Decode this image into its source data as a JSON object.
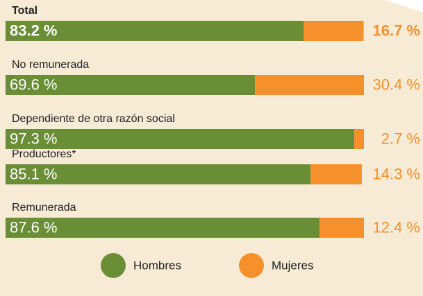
{
  "chart_data": {
    "type": "stacked_bar_horizontal",
    "categories": [
      "Total",
      "No remunerada",
      "Dependiente de otra razón social",
      "Productores*",
      "Remunerada"
    ],
    "xlim": [
      0,
      100
    ],
    "series": [
      {
        "name": "Hombres",
        "color": "#6a8e36",
        "values": [
          83.2,
          69.6,
          97.3,
          85.1,
          87.6
        ],
        "value_labels": [
          "83.2 %",
          "69.6 %",
          "97.3 %",
          "85.1 %",
          "87.6 %"
        ]
      },
      {
        "name": "Mujeres",
        "color": "#f5902b",
        "values": [
          16.7,
          30.4,
          2.7,
          14.3,
          12.4
        ],
        "value_labels": [
          "16.7 %",
          "30.4 %",
          "2.7 %",
          "14.3 %",
          "12.4 %"
        ]
      }
    ]
  }
}
